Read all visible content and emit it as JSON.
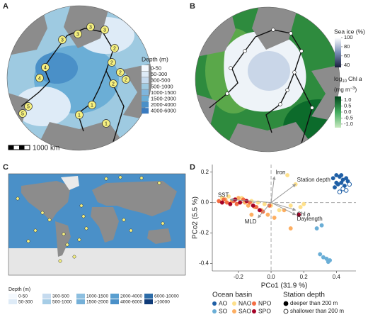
{
  "panels": {
    "A": {
      "label": "A",
      "legend_title": "Depth (m)",
      "legend_items": [
        "0-50",
        "50-300",
        "300-500",
        "500-1000",
        "1000-1500",
        "1500-2000",
        "2000-4000",
        "4000-6000"
      ],
      "legend_colors": [
        "#f4f9fe",
        "#deebf7",
        "#c6dbef",
        "#9ecae1",
        "#7fb5dc",
        "#6baed6",
        "#4a90c8",
        "#3a7bbf"
      ],
      "scale_bar": "1000 km",
      "stations": [
        "3",
        "3",
        "3",
        "3",
        "2",
        "2",
        "2",
        "2",
        "2",
        "4",
        "4",
        "5",
        "5",
        "1",
        "1",
        "1"
      ]
    },
    "B": {
      "label": "B",
      "sea_ice": {
        "title": "Sea ice (%)",
        "range": [
          35,
          100
        ],
        "ticks": [
          100,
          80,
          60,
          40
        ]
      },
      "chl": {
        "title_parts": [
          "log",
          "10",
          "Chl",
          "a"
        ],
        "unit_parts": [
          "(mg m",
          "−3",
          ")"
        ],
        "range": [
          -1.3,
          1.3
        ],
        "ticks": [
          {
            "value": 1,
            "label": "1.0"
          },
          0.5,
          {
            "value": 0,
            "label": "0.0"
          },
          -0.5,
          {
            "value": -1,
            "label": "-1.0"
          }
        ]
      }
    },
    "C": {
      "label": "C",
      "legend_title": "Depth (m)",
      "legend_items": [
        "0-50",
        "50-300",
        "300-500",
        "500-1000",
        "1000-1500",
        "1500-2000",
        "2000-4000",
        "4000-6000",
        "6000-10000",
        ">10000"
      ],
      "legend_colors": [
        "#f4f9fe",
        "#deebf7",
        "#c6dbef",
        "#a6cde6",
        "#8dbfe0",
        "#75b0d8",
        "#5a9fd0",
        "#4a90c8",
        "#2c6ca8",
        "#0f3b78"
      ]
    },
    "D": {
      "label": "D"
    }
  },
  "chart_data": {
    "type": "scatter",
    "xlabel": "PCo1 (31.9 %)",
    "ylabel": "PCo2 (5.5 %)",
    "xlim": [
      -0.36,
      0.52
    ],
    "ylim": [
      -0.45,
      0.25
    ],
    "xticks": [
      -0.2,
      {
        "value": 0,
        "label": "0.0"
      },
      0.2,
      0.4
    ],
    "yticks": [
      0.2,
      {
        "value": 0,
        "label": "0.0"
      },
      -0.2,
      -0.4
    ],
    "legend_title": "Ocean basin",
    "depth_legend_title": "Station depth",
    "depth_legend": [
      "deeper than 200 m",
      "shallower than 200 m"
    ],
    "series": [
      {
        "name": "AO",
        "color": "#1f5fa6",
        "x": [
          0.38,
          0.4,
          0.42,
          0.44,
          0.46,
          0.41,
          0.43,
          0.45,
          0.47,
          0.39,
          0.44,
          0.42,
          0.46,
          0.4,
          0.48,
          0.43
        ],
        "y": [
          0.16,
          0.18,
          0.17,
          0.15,
          0.16,
          0.12,
          0.13,
          0.11,
          0.14,
          0.1,
          0.09,
          0.07,
          0.08,
          0.13,
          0.12,
          0.18
        ],
        "shallow": [
          false,
          false,
          false,
          false,
          false,
          false,
          false,
          false,
          false,
          false,
          true,
          true,
          true,
          false,
          true,
          false
        ]
      },
      {
        "name": "SO",
        "color": "#6aaed6",
        "x": [
          0.32,
          0.34,
          0.35,
          0.36,
          0.3,
          0.28,
          0.31
        ],
        "y": [
          -0.36,
          -0.37,
          -0.39,
          -0.38,
          -0.34,
          -0.17,
          -0.15
        ],
        "shallow": [
          false,
          false,
          false,
          false,
          false,
          false,
          false
        ]
      },
      {
        "name": "NAO",
        "color": "#fee08b",
        "x": [
          -0.3,
          -0.26,
          -0.22,
          -0.18,
          -0.12,
          -0.08,
          -0.04,
          0.0,
          0.05,
          0.1,
          0.15,
          0.12,
          0.18,
          0.2
        ],
        "y": [
          0.03,
          0.04,
          0.02,
          0.03,
          0.01,
          0.0,
          -0.01,
          -0.02,
          -0.05,
          0.18,
          0.12,
          -0.02,
          -0.03,
          -0.01
        ],
        "shallow": [
          false,
          false,
          false,
          false,
          false,
          false,
          false,
          false,
          false,
          false,
          false,
          false,
          false,
          false
        ]
      },
      {
        "name": "SAO",
        "color": "#fdae61",
        "x": [
          -0.28,
          -0.24,
          -0.2,
          -0.16,
          -0.14,
          -0.1,
          -0.06,
          -0.02,
          0.02,
          0.08,
          0.12,
          -0.12
        ],
        "y": [
          0.02,
          0.01,
          0.03,
          0.0,
          -0.02,
          -0.03,
          -0.05,
          -0.08,
          -0.1,
          -0.05,
          -0.17,
          -0.08
        ],
        "shallow": [
          false,
          false,
          false,
          false,
          false,
          false,
          false,
          false,
          false,
          false,
          false,
          false
        ]
      },
      {
        "name": "NPO",
        "color": "#f46d43",
        "x": [
          -0.32,
          -0.29,
          -0.27,
          -0.23,
          -0.21,
          -0.17,
          -0.13,
          -0.09,
          -0.05,
          -0.01
        ],
        "y": [
          0.01,
          0.02,
          0.0,
          0.01,
          -0.01,
          0.02,
          0.0,
          -0.03,
          -0.06,
          -0.02
        ],
        "shallow": [
          false,
          false,
          false,
          false,
          false,
          false,
          false,
          false,
          false,
          false
        ]
      },
      {
        "name": "SPO",
        "color": "#a50026",
        "x": [
          -0.3,
          -0.25,
          -0.22,
          -0.19,
          -0.15,
          -0.11,
          -0.07,
          0.17
        ],
        "y": [
          0.0,
          -0.01,
          0.02,
          0.0,
          0.01,
          -0.02,
          -0.05,
          -0.08
        ],
        "shallow": [
          false,
          false,
          false,
          false,
          false,
          false,
          false,
          false
        ]
      }
    ],
    "vectors": [
      {
        "name": "Iron",
        "x": 0.02,
        "y": 0.17
      },
      {
        "name": "Station depth",
        "x": 0.15,
        "y": 0.12
      },
      {
        "name": "SST",
        "x": -0.25,
        "y": 0.02
      },
      {
        "name": "MLD",
        "x": -0.08,
        "y": -0.1
      },
      {
        "name": "Chl a",
        "x": 0.15,
        "y": -0.05
      },
      {
        "name": "Daylength",
        "x": 0.15,
        "y": -0.08
      }
    ]
  }
}
